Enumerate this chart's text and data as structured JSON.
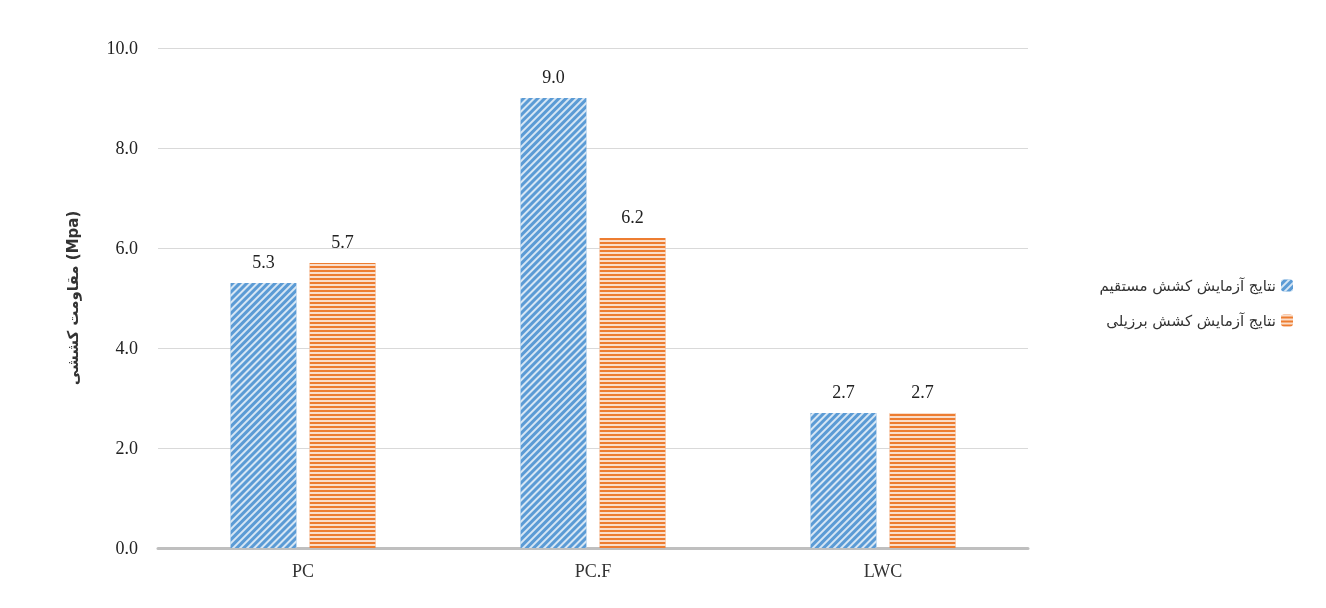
{
  "chart_data": {
    "type": "bar",
    "ylabel": "مقاومت کششی (Mpa)",
    "categories": [
      "PC",
      "PC.F",
      "LWC"
    ],
    "series": [
      {
        "name": "نتایج آزمایش کشش مستقیم",
        "color": "#5b9bd5",
        "values": [
          5.3,
          9.0,
          2.7
        ],
        "value_labels": [
          "5.3",
          "9.0",
          "2.7"
        ]
      },
      {
        "name": "نتایج آزمایش کشش برزیلی",
        "color": "#ed7d31",
        "values": [
          5.7,
          6.2,
          2.7
        ],
        "value_labels": [
          "5.7",
          "6.2",
          "2.7"
        ]
      }
    ],
    "ylim": [
      0,
      10
    ],
    "yticks": [
      {
        "value": 0,
        "label": "0.0"
      },
      {
        "value": 2,
        "label": "2.0"
      },
      {
        "value": 4,
        "label": "4.0"
      },
      {
        "value": 6,
        "label": "6.0"
      },
      {
        "value": 8,
        "label": "8.0"
      },
      {
        "value": 10,
        "label": "10.0"
      }
    ],
    "grid": "y",
    "legend": "right"
  }
}
